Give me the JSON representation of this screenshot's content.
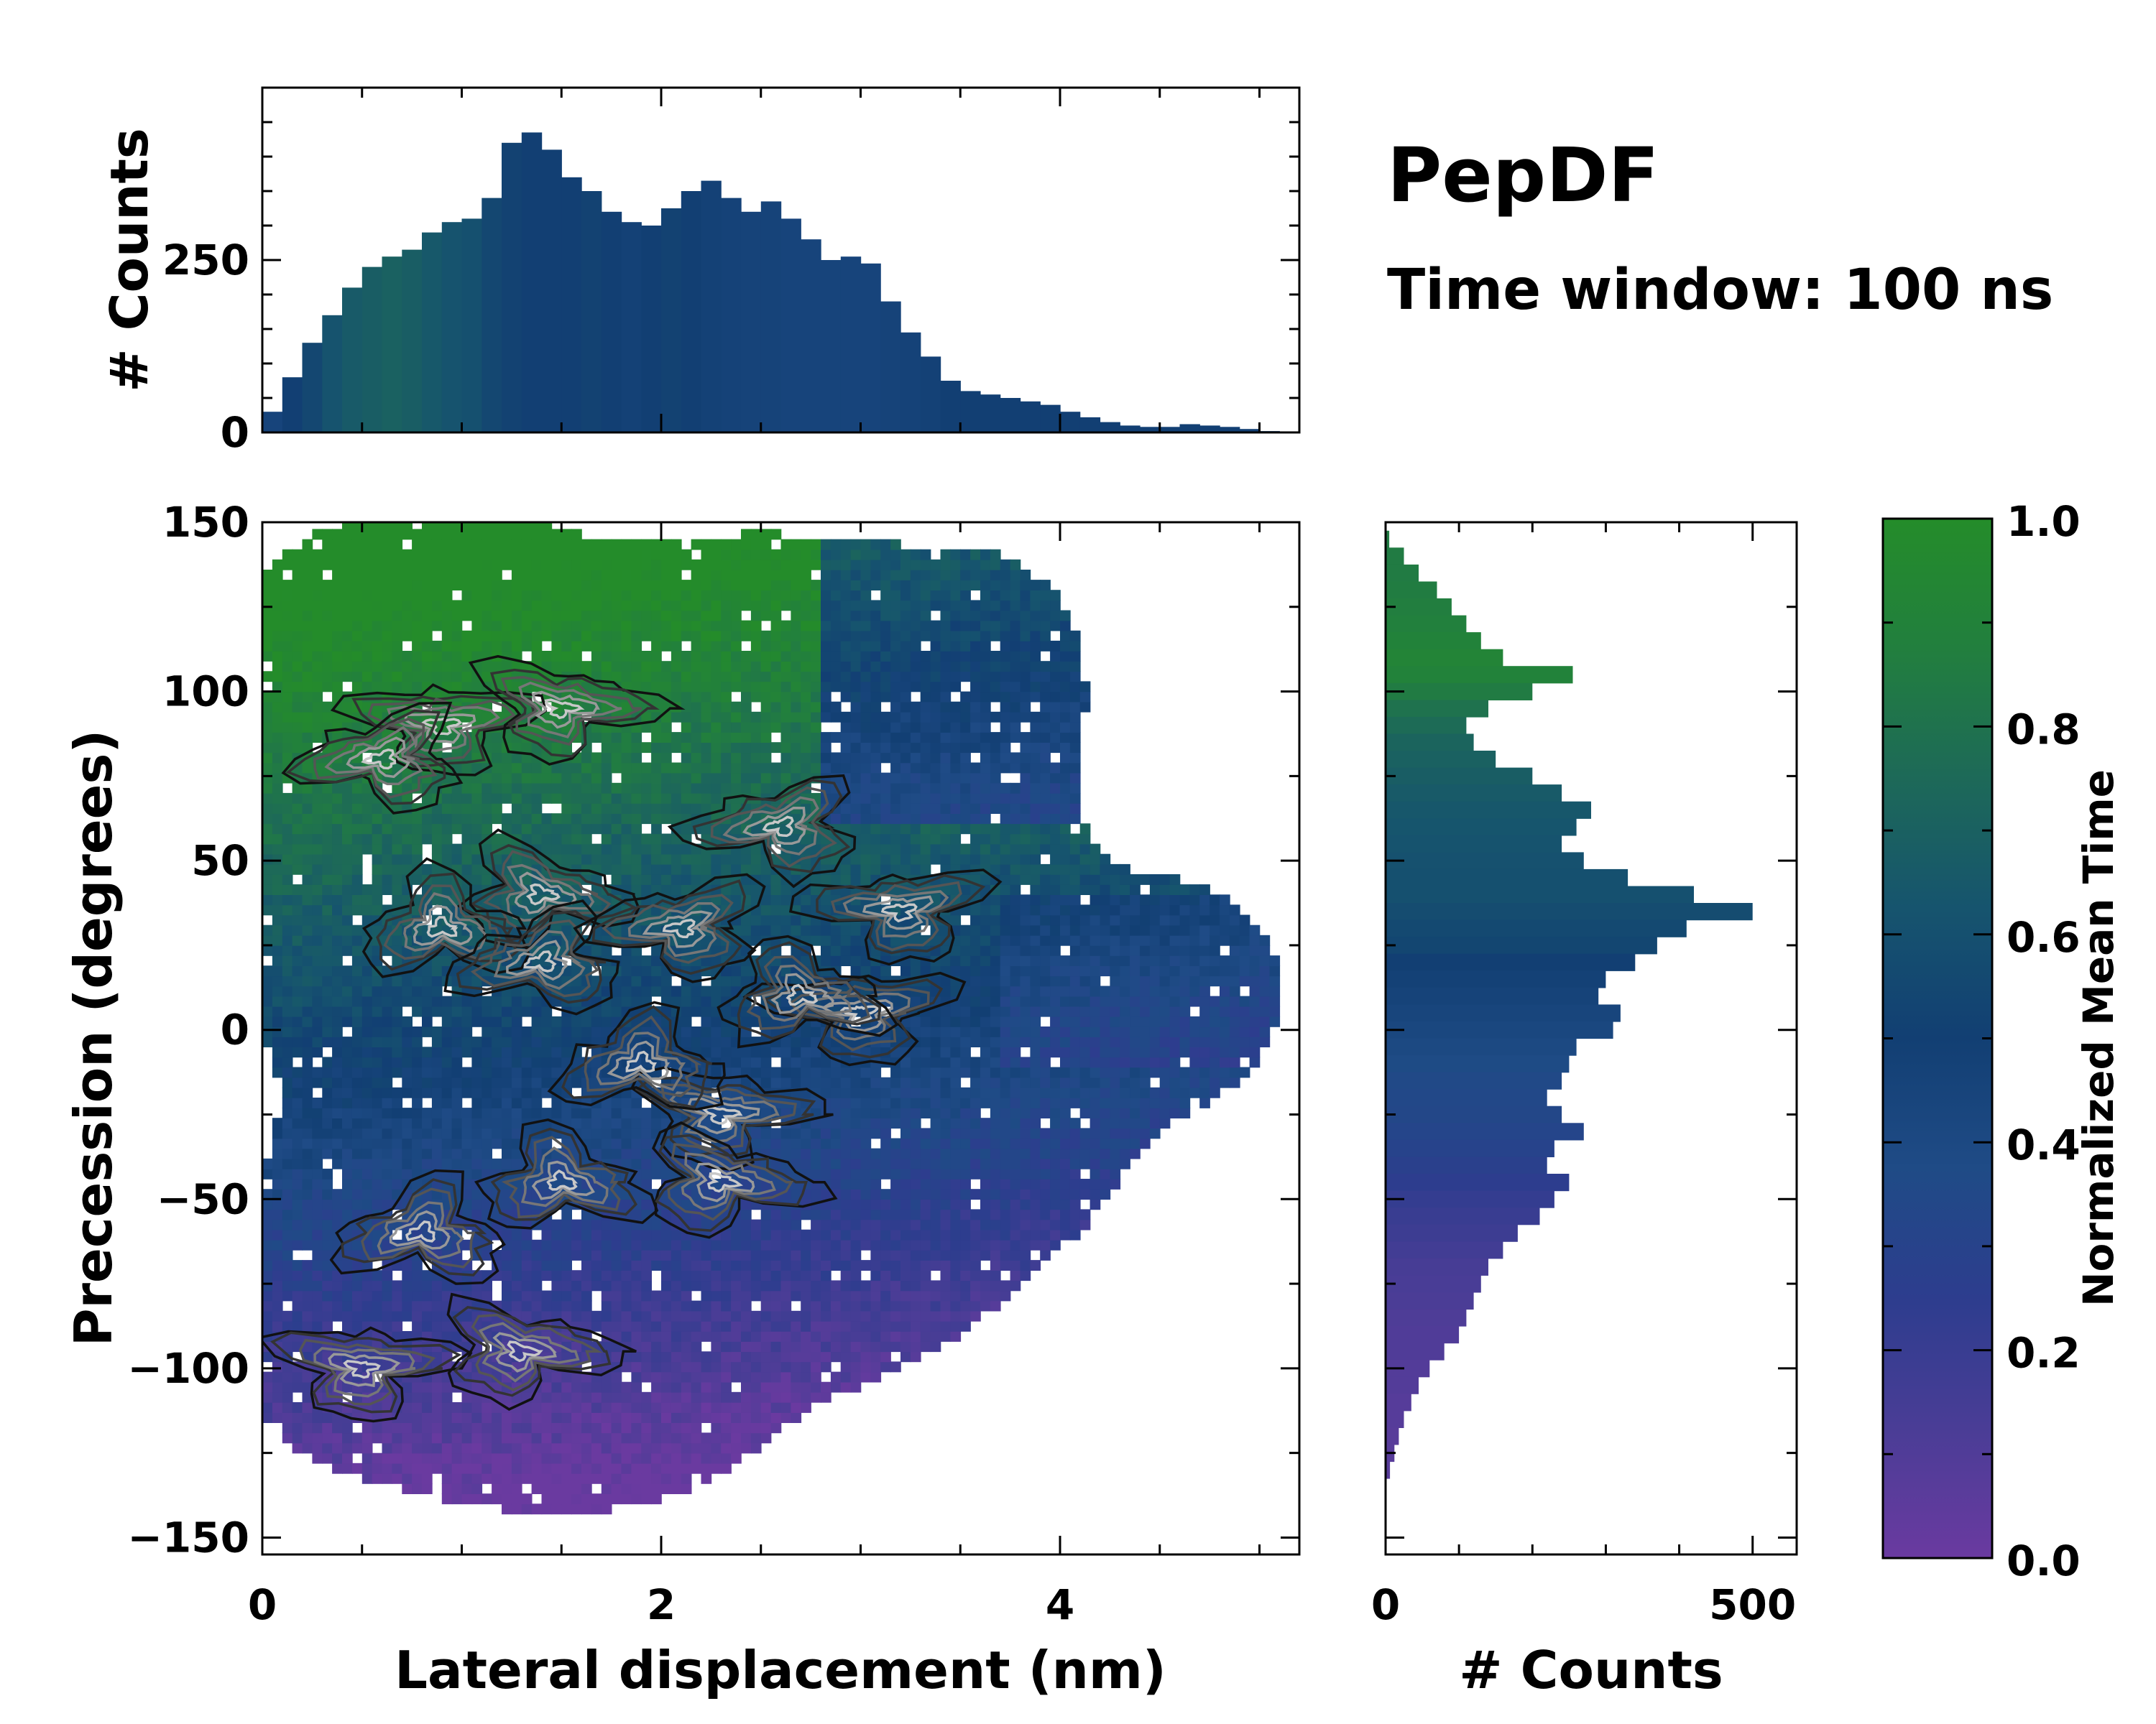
{
  "title": "PepDF",
  "subtitle": "Time window: 100 ns",
  "colors": {
    "cmap": [
      "#6a3aa0",
      "#4a3d96",
      "#2d3d8e",
      "#1f4b86",
      "#123f73",
      "#16546e",
      "#1d6958",
      "#227f3e",
      "#248c2a"
    ]
  },
  "chart_data": [
    {
      "type": "heatmap",
      "name": "main",
      "title": "",
      "xlabel": "Lateral displacement (nm)",
      "ylabel": "Precession (degrees)",
      "xlim": [
        0,
        5.2
      ],
      "ylim": [
        -155,
        150
      ],
      "xticks": [
        0,
        2,
        4
      ],
      "xtick_labels": [
        "0",
        "2",
        "4"
      ],
      "yticks": [
        150,
        100,
        50,
        0,
        -50,
        -100,
        -150
      ],
      "ytick_labels": [
        "150",
        "100",
        "50",
        "0",
        "−50",
        "−100",
        "−150"
      ],
      "x_bin": 0.05,
      "y_bin": 3,
      "color_meaning": "Normalized Mean Time",
      "region_center_x_nm": 2.2,
      "region_center_y_deg": 10,
      "contour_levels": 6
    },
    {
      "type": "bar",
      "name": "top-histogram",
      "xlabel": "",
      "ylabel": "# Counts",
      "xlim": [
        0,
        5.2
      ],
      "ylim": [
        0,
        500
      ],
      "yticks": [
        0,
        250
      ],
      "ytick_labels": [
        "0",
        "250"
      ],
      "x": [
        0.05,
        0.15,
        0.25,
        0.35,
        0.45,
        0.55,
        0.65,
        0.75,
        0.85,
        0.95,
        1.05,
        1.15,
        1.25,
        1.35,
        1.45,
        1.55,
        1.65,
        1.75,
        1.85,
        1.95,
        2.05,
        2.15,
        2.25,
        2.35,
        2.45,
        2.55,
        2.65,
        2.75,
        2.85,
        2.95,
        3.05,
        3.15,
        3.25,
        3.35,
        3.45,
        3.55,
        3.65,
        3.75,
        3.85,
        3.95,
        4.05,
        4.15,
        4.25,
        4.35,
        4.45,
        4.55,
        4.65,
        4.75,
        4.85,
        4.95,
        5.05
      ],
      "values": [
        30,
        80,
        130,
        170,
        210,
        240,
        255,
        265,
        290,
        305,
        310,
        340,
        420,
        435,
        410,
        370,
        350,
        320,
        305,
        300,
        325,
        350,
        365,
        340,
        320,
        335,
        310,
        280,
        250,
        255,
        245,
        190,
        145,
        110,
        75,
        60,
        55,
        50,
        45,
        40,
        30,
        22,
        15,
        10,
        8,
        8,
        12,
        10,
        8,
        5,
        2
      ],
      "bar_colors": [
        0.45,
        0.5,
        0.55,
        0.62,
        0.66,
        0.68,
        0.7,
        0.68,
        0.65,
        0.62,
        0.6,
        0.55,
        0.52,
        0.5,
        0.5,
        0.5,
        0.52,
        0.5,
        0.48,
        0.5,
        0.52,
        0.5,
        0.48,
        0.47,
        0.46,
        0.46,
        0.45,
        0.45,
        0.45,
        0.45,
        0.45,
        0.46,
        0.47,
        0.48,
        0.5,
        0.5,
        0.5,
        0.5,
        0.5,
        0.5,
        0.5,
        0.5,
        0.5,
        0.5,
        0.5,
        0.5,
        0.5,
        0.5,
        0.5,
        0.5,
        0.5
      ]
    },
    {
      "type": "bar",
      "name": "right-histogram",
      "orientation": "horizontal",
      "xlabel": "# Counts",
      "ylabel": "",
      "xlim": [
        0,
        560
      ],
      "ylim": [
        -155,
        150
      ],
      "xticks": [
        0,
        500
      ],
      "xtick_labels": [
        "0",
        "500"
      ],
      "y": [
        145,
        140,
        135,
        130,
        125,
        120,
        115,
        110,
        105,
        100,
        95,
        90,
        85,
        80,
        75,
        70,
        65,
        60,
        55,
        50,
        45,
        40,
        35,
        30,
        25,
        20,
        15,
        10,
        5,
        0,
        -5,
        -10,
        -15,
        -20,
        -25,
        -30,
        -35,
        -40,
        -45,
        -50,
        -55,
        -60,
        -65,
        -70,
        -75,
        -80,
        -85,
        -90,
        -95,
        -100,
        -105,
        -110,
        -115,
        -120,
        -125,
        -130
      ],
      "values": [
        5,
        25,
        45,
        70,
        90,
        110,
        130,
        160,
        255,
        200,
        140,
        110,
        120,
        150,
        200,
        240,
        280,
        260,
        240,
        270,
        330,
        420,
        500,
        410,
        370,
        340,
        300,
        290,
        320,
        310,
        260,
        250,
        240,
        220,
        240,
        270,
        230,
        220,
        250,
        230,
        210,
        180,
        160,
        140,
        130,
        120,
        110,
        100,
        80,
        60,
        45,
        35,
        25,
        18,
        12,
        6
      ],
      "bar_colors": [
        0.85,
        0.85,
        0.85,
        0.86,
        0.87,
        0.88,
        0.9,
        0.92,
        0.9,
        0.85,
        0.8,
        0.76,
        0.72,
        0.7,
        0.68,
        0.66,
        0.64,
        0.63,
        0.62,
        0.61,
        0.6,
        0.6,
        0.58,
        0.56,
        0.54,
        0.5,
        0.48,
        0.46,
        0.44,
        0.42,
        0.4,
        0.38,
        0.36,
        0.35,
        0.34,
        0.32,
        0.3,
        0.28,
        0.25,
        0.22,
        0.2,
        0.18,
        0.16,
        0.14,
        0.13,
        0.12,
        0.11,
        0.1,
        0.1,
        0.09,
        0.09,
        0.08,
        0.08,
        0.07,
        0.07,
        0.07
      ]
    },
    {
      "type": "colorbar",
      "name": "colorbar",
      "label": "Normalized Mean Time",
      "range": [
        0.0,
        1.0
      ],
      "ticks": [
        0.0,
        0.2,
        0.4,
        0.6,
        0.8,
        1.0
      ],
      "tick_labels": [
        "0.0",
        "0.2",
        "0.4",
        "0.6",
        "0.8",
        "1.0"
      ]
    }
  ]
}
